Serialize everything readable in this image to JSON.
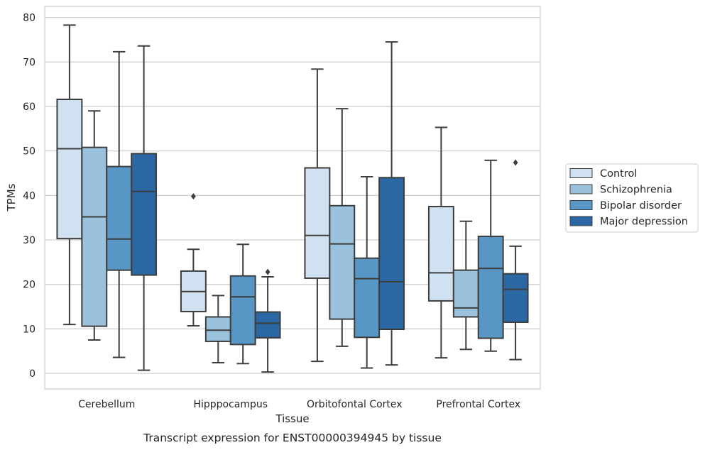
{
  "chart_data": {
    "type": "box",
    "xlabel": "Tissue",
    "ylabel": "TPMs",
    "caption": "Transcript expression for ENST00000394945 by tissue",
    "ylim": [
      -3.5,
      82.5
    ],
    "yticks": [
      0,
      10,
      20,
      30,
      40,
      50,
      60,
      70,
      80
    ],
    "grid": "horizontal",
    "legend_position": "right",
    "categories": [
      "Cerebellum",
      "Hipppocampus",
      "Orbitofontal Cortex",
      "Prefrontal Cortex"
    ],
    "series": [
      {
        "name": "Control",
        "color": "#d0e1f2",
        "boxes": [
          {
            "min": 11.0,
            "q1": 30.3,
            "median": 50.5,
            "q3": 61.6,
            "max": 78.3,
            "outliers": []
          },
          {
            "min": 10.7,
            "q1": 13.9,
            "median": 18.4,
            "q3": 23.0,
            "max": 27.9,
            "outliers": [
              39.8
            ]
          },
          {
            "min": 2.7,
            "q1": 21.4,
            "median": 31.0,
            "q3": 46.2,
            "max": 68.4,
            "outliers": []
          },
          {
            "min": 3.5,
            "q1": 16.3,
            "median": 22.6,
            "q3": 37.5,
            "max": 55.3,
            "outliers": []
          }
        ]
      },
      {
        "name": "Schizophrenia",
        "color": "#9ac2dc",
        "boxes": [
          {
            "min": 7.5,
            "q1": 10.6,
            "median": 35.2,
            "q3": 50.8,
            "max": 59.0,
            "outliers": []
          },
          {
            "min": 2.4,
            "q1": 7.2,
            "median": 9.7,
            "q3": 12.7,
            "max": 17.5,
            "outliers": []
          },
          {
            "min": 6.1,
            "q1": 12.2,
            "median": 29.1,
            "q3": 37.7,
            "max": 59.5,
            "outliers": []
          },
          {
            "min": 5.4,
            "q1": 12.7,
            "median": 14.7,
            "q3": 23.2,
            "max": 34.2,
            "outliers": []
          }
        ]
      },
      {
        "name": "Bipolar disorder",
        "color": "#5796c5",
        "boxes": [
          {
            "min": 3.6,
            "q1": 23.2,
            "median": 30.2,
            "q3": 46.5,
            "max": 72.3,
            "outliers": []
          },
          {
            "min": 2.2,
            "q1": 6.5,
            "median": 17.2,
            "q3": 21.9,
            "max": 29.0,
            "outliers": []
          },
          {
            "min": 1.2,
            "q1": 8.1,
            "median": 21.3,
            "q3": 25.9,
            "max": 44.2,
            "outliers": []
          },
          {
            "min": 5.0,
            "q1": 7.9,
            "median": 23.6,
            "q3": 30.8,
            "max": 47.9,
            "outliers": []
          }
        ]
      },
      {
        "name": "Major depression",
        "color": "#2a67a3",
        "boxes": [
          {
            "min": 0.7,
            "q1": 22.1,
            "median": 40.9,
            "q3": 49.4,
            "max": 73.6,
            "outliers": []
          },
          {
            "min": 0.3,
            "q1": 8.0,
            "median": 11.3,
            "q3": 13.8,
            "max": 21.7,
            "outliers": [
              22.8
            ]
          },
          {
            "min": 1.9,
            "q1": 9.9,
            "median": 20.6,
            "q3": 44.0,
            "max": 74.5,
            "outliers": []
          },
          {
            "min": 3.1,
            "q1": 11.5,
            "median": 18.9,
            "q3": 22.4,
            "max": 28.6,
            "outliers": [
              47.4
            ]
          }
        ]
      }
    ]
  }
}
